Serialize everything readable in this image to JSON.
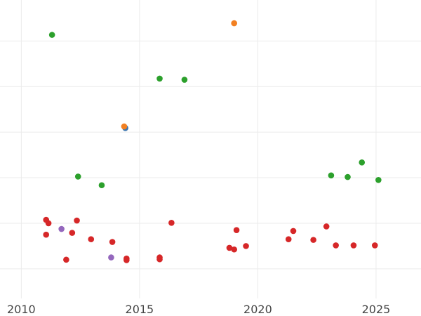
{
  "chart_data": {
    "type": "scatter",
    "title": "",
    "xlabel": "",
    "ylabel": "",
    "xlim": [
      2009.1,
      2026.9
    ],
    "ylim": [
      -1.3,
      11.8
    ],
    "x_ticks": [
      2010,
      2015,
      2020,
      2025
    ],
    "x_tick_labels": [
      "2010",
      "2015",
      "2020",
      "2025"
    ],
    "y_gridlines": [
      0,
      2,
      4,
      6,
      8,
      10,
      12
    ],
    "grid": true,
    "colors": {
      "blue": "#3b75af",
      "orange": "#f28022",
      "green": "#2ca02c",
      "red": "#d62728",
      "purple": "#9467bd"
    },
    "series": [
      {
        "color": "blue",
        "points": [
          {
            "x": 2014.4,
            "y": 6.18
          }
        ]
      },
      {
        "color": "orange",
        "points": [
          {
            "x": 2019.0,
            "y": 10.78
          },
          {
            "x": 2014.35,
            "y": 6.25
          }
        ]
      },
      {
        "color": "green",
        "points": [
          {
            "x": 2011.3,
            "y": 10.27
          },
          {
            "x": 2015.85,
            "y": 8.35
          },
          {
            "x": 2016.9,
            "y": 8.3
          },
          {
            "x": 2012.4,
            "y": 4.05
          },
          {
            "x": 2013.4,
            "y": 3.67
          },
          {
            "x": 2024.4,
            "y": 4.67
          },
          {
            "x": 2023.1,
            "y": 4.1
          },
          {
            "x": 2023.8,
            "y": 4.03
          },
          {
            "x": 2025.1,
            "y": 3.9
          }
        ]
      },
      {
        "color": "red",
        "points": [
          {
            "x": 2011.05,
            "y": 2.15
          },
          {
            "x": 2011.15,
            "y": 2.0
          },
          {
            "x": 2012.35,
            "y": 2.12
          },
          {
            "x": 2011.05,
            "y": 1.5
          },
          {
            "x": 2012.15,
            "y": 1.58
          },
          {
            "x": 2012.95,
            "y": 1.3
          },
          {
            "x": 2013.85,
            "y": 1.18
          },
          {
            "x": 2011.9,
            "y": 0.4
          },
          {
            "x": 2014.45,
            "y": 0.45
          },
          {
            "x": 2014.45,
            "y": 0.38
          },
          {
            "x": 2015.85,
            "y": 0.5
          },
          {
            "x": 2015.85,
            "y": 0.42
          },
          {
            "x": 2016.35,
            "y": 2.02
          },
          {
            "x": 2018.8,
            "y": 0.92
          },
          {
            "x": 2019.0,
            "y": 0.85
          },
          {
            "x": 2019.1,
            "y": 1.7
          },
          {
            "x": 2019.5,
            "y": 1.0
          },
          {
            "x": 2021.3,
            "y": 1.3
          },
          {
            "x": 2021.5,
            "y": 1.66
          },
          {
            "x": 2022.35,
            "y": 1.27
          },
          {
            "x": 2022.9,
            "y": 1.86
          },
          {
            "x": 2023.3,
            "y": 1.03
          },
          {
            "x": 2024.05,
            "y": 1.03
          },
          {
            "x": 2024.95,
            "y": 1.03
          }
        ]
      },
      {
        "color": "purple",
        "points": [
          {
            "x": 2011.7,
            "y": 1.75
          },
          {
            "x": 2013.8,
            "y": 0.5
          }
        ]
      }
    ]
  }
}
